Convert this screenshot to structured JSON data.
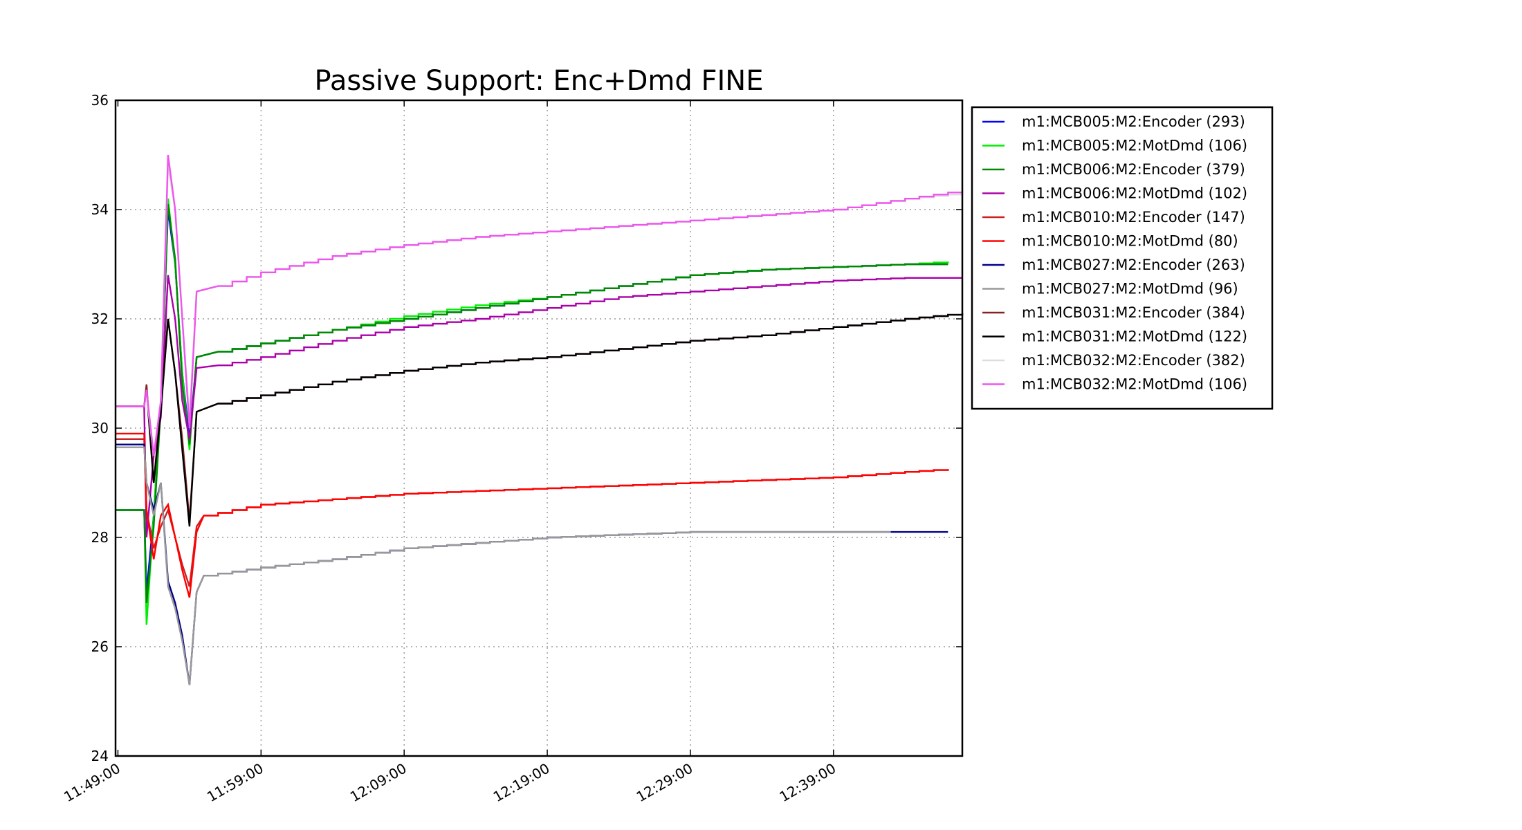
{
  "chart_data": {
    "type": "line",
    "title": "Passive Support:  Enc+Dmd FINE",
    "xlabel": "",
    "ylabel": "",
    "xlim": [
      "11:48:50",
      "12:48:00"
    ],
    "ylim": [
      24,
      36
    ],
    "xticks": [
      "11:49:00",
      "11:59:00",
      "12:09:00",
      "12:19:00",
      "12:29:00",
      "12:39:00"
    ],
    "yticks": [
      24,
      26,
      28,
      30,
      32,
      34,
      36
    ],
    "grid": true,
    "legend_position": "outside-right-top",
    "series": [
      {
        "name": "m1:MCB005:M2:Encoder (293)",
        "color": "#0000ff",
        "points": [
          [
            "11:48:50",
            28.5
          ],
          [
            "11:50:50",
            28.5
          ],
          [
            "11:51:00",
            27.0
          ],
          [
            "11:51:30",
            28.4
          ],
          [
            "11:52:00",
            30.5
          ],
          [
            "11:52:30",
            34.0
          ],
          [
            "11:53:00",
            33.0
          ],
          [
            "11:53:30",
            31.0
          ],
          [
            "11:54:00",
            29.8
          ],
          [
            "11:54:30",
            31.3
          ],
          [
            "11:56:00",
            31.4
          ],
          [
            "11:59:00",
            31.55
          ],
          [
            "12:04:00",
            31.8
          ],
          [
            "12:09:00",
            32.0
          ],
          [
            "12:14:00",
            32.2
          ],
          [
            "12:19:00",
            32.4
          ],
          [
            "12:24:00",
            32.6
          ],
          [
            "12:29:00",
            32.8
          ],
          [
            "12:34:00",
            32.9
          ],
          [
            "12:39:00",
            32.95
          ],
          [
            "12:44:00",
            33.0
          ],
          [
            "12:47:00",
            33.0
          ]
        ]
      },
      {
        "name": "m1:MCB005:M2:MotDmd (106)",
        "color": "#00ee00",
        "points": [
          [
            "11:48:50",
            28.5
          ],
          [
            "11:50:50",
            28.5
          ],
          [
            "11:51:00",
            26.4
          ],
          [
            "11:51:30",
            28.4
          ],
          [
            "11:52:00",
            30.5
          ],
          [
            "11:52:30",
            34.2
          ],
          [
            "11:53:00",
            33.0
          ],
          [
            "11:53:30",
            31.0
          ],
          [
            "11:54:00",
            29.6
          ],
          [
            "11:54:30",
            31.3
          ],
          [
            "11:56:00",
            31.4
          ],
          [
            "11:59:00",
            31.55
          ],
          [
            "12:04:00",
            31.8
          ],
          [
            "12:09:00",
            32.05
          ],
          [
            "12:14:00",
            32.25
          ],
          [
            "12:19:00",
            32.4
          ],
          [
            "12:24:00",
            32.6
          ],
          [
            "12:29:00",
            32.8
          ],
          [
            "12:34:00",
            32.9
          ],
          [
            "12:39:00",
            32.95
          ],
          [
            "12:44:00",
            33.0
          ],
          [
            "12:47:00",
            33.05
          ]
        ]
      },
      {
        "name": "m1:MCB006:M2:Encoder (379)",
        "color": "#008800",
        "points": [
          [
            "11:48:50",
            28.5
          ],
          [
            "11:50:50",
            28.5
          ],
          [
            "11:51:00",
            26.8
          ],
          [
            "11:51:30",
            28.2
          ],
          [
            "11:52:00",
            30.4
          ],
          [
            "11:52:30",
            34.1
          ],
          [
            "11:53:00",
            33.1
          ],
          [
            "11:53:30",
            30.8
          ],
          [
            "11:54:00",
            29.7
          ],
          [
            "11:54:30",
            31.3
          ],
          [
            "11:56:00",
            31.4
          ],
          [
            "11:59:00",
            31.55
          ],
          [
            "12:04:00",
            31.8
          ],
          [
            "12:09:00",
            32.0
          ],
          [
            "12:14:00",
            32.2
          ],
          [
            "12:19:00",
            32.4
          ],
          [
            "12:24:00",
            32.6
          ],
          [
            "12:29:00",
            32.8
          ],
          [
            "12:34:00",
            32.9
          ],
          [
            "12:39:00",
            32.95
          ],
          [
            "12:44:00",
            33.0
          ],
          [
            "12:47:00",
            33.0
          ]
        ]
      },
      {
        "name": "m1:MCB006:M2:MotDmd (102)",
        "color": "#aa00aa",
        "points": [
          [
            "11:48:50",
            30.4
          ],
          [
            "11:50:50",
            30.4
          ],
          [
            "11:51:00",
            28.0
          ],
          [
            "11:51:30",
            29.5
          ],
          [
            "11:52:00",
            30.2
          ],
          [
            "11:52:30",
            32.8
          ],
          [
            "11:53:00",
            32.0
          ],
          [
            "11:53:30",
            30.5
          ],
          [
            "11:54:00",
            29.8
          ],
          [
            "11:54:30",
            31.1
          ],
          [
            "11:56:00",
            31.15
          ],
          [
            "11:59:00",
            31.3
          ],
          [
            "12:04:00",
            31.6
          ],
          [
            "12:09:00",
            31.85
          ],
          [
            "12:14:00",
            32.0
          ],
          [
            "12:19:00",
            32.2
          ],
          [
            "12:24:00",
            32.4
          ],
          [
            "12:29:00",
            32.5
          ],
          [
            "12:34:00",
            32.6
          ],
          [
            "12:39:00",
            32.7
          ],
          [
            "12:44:00",
            32.75
          ],
          [
            "12:48:00",
            32.75
          ]
        ]
      },
      {
        "name": "m1:MCB010:M2:Encoder (147)",
        "color": "#cc2222",
        "points": [
          [
            "11:48:50",
            29.8
          ],
          [
            "11:50:50",
            29.8
          ],
          [
            "11:51:00",
            28.5
          ],
          [
            "11:51:30",
            27.8
          ],
          [
            "11:52:00",
            28.2
          ],
          [
            "11:52:30",
            28.5
          ],
          [
            "11:53:00",
            28.0
          ],
          [
            "11:53:30",
            27.5
          ],
          [
            "11:54:00",
            27.1
          ],
          [
            "11:54:30",
            28.2
          ],
          [
            "11:55:00",
            28.4
          ],
          [
            "11:59:00",
            28.6
          ],
          [
            "12:04:00",
            28.7
          ],
          [
            "12:09:00",
            28.8
          ],
          [
            "12:14:00",
            28.85
          ],
          [
            "12:19:00",
            28.9
          ],
          [
            "12:24:00",
            28.95
          ],
          [
            "12:29:00",
            29.0
          ],
          [
            "12:34:00",
            29.05
          ],
          [
            "12:39:00",
            29.1
          ],
          [
            "12:44:00",
            29.2
          ],
          [
            "12:47:00",
            29.25
          ]
        ]
      },
      {
        "name": "m1:MCB010:M2:MotDmd (80)",
        "color": "#ff0000",
        "points": [
          [
            "11:48:50",
            29.9
          ],
          [
            "11:50:50",
            29.9
          ],
          [
            "11:51:00",
            28.5
          ],
          [
            "11:51:30",
            27.6
          ],
          [
            "11:52:00",
            28.4
          ],
          [
            "11:52:30",
            28.6
          ],
          [
            "11:53:00",
            28.0
          ],
          [
            "11:53:30",
            27.4
          ],
          [
            "11:54:00",
            26.9
          ],
          [
            "11:54:30",
            28.1
          ],
          [
            "11:55:00",
            28.4
          ],
          [
            "11:59:00",
            28.6
          ],
          [
            "12:04:00",
            28.7
          ],
          [
            "12:09:00",
            28.8
          ],
          [
            "12:14:00",
            28.85
          ],
          [
            "12:19:00",
            28.9
          ],
          [
            "12:24:00",
            28.95
          ],
          [
            "12:29:00",
            29.0
          ],
          [
            "12:34:00",
            29.05
          ],
          [
            "12:39:00",
            29.1
          ],
          [
            "12:44:00",
            29.2
          ],
          [
            "12:47:00",
            29.25
          ]
        ]
      },
      {
        "name": "m1:MCB027:M2:Encoder (263)",
        "color": "#000088",
        "points": [
          [
            "11:48:50",
            29.7
          ],
          [
            "11:50:50",
            29.7
          ],
          [
            "11:51:00",
            29.0
          ],
          [
            "11:51:30",
            28.5
          ],
          [
            "11:52:00",
            29.0
          ],
          [
            "11:52:30",
            27.2
          ],
          [
            "11:53:00",
            26.8
          ],
          [
            "11:53:30",
            26.2
          ],
          [
            "11:54:00",
            25.3
          ],
          [
            "11:54:30",
            27.0
          ],
          [
            "11:55:00",
            27.3
          ],
          [
            "11:59:00",
            27.45
          ],
          [
            "12:04:00",
            27.6
          ],
          [
            "12:09:00",
            27.8
          ],
          [
            "12:14:00",
            27.9
          ],
          [
            "12:19:00",
            28.0
          ],
          [
            "12:24:00",
            28.05
          ],
          [
            "12:29:00",
            28.1
          ],
          [
            "12:34:00",
            28.1
          ],
          [
            "12:39:00",
            28.1
          ],
          [
            "12:44:00",
            28.1
          ],
          [
            "12:47:00",
            28.1
          ]
        ]
      },
      {
        "name": "m1:MCB027:M2:MotDmd (96)",
        "color": "#999999",
        "points": [
          [
            "11:48:50",
            29.65
          ],
          [
            "11:50:50",
            29.65
          ],
          [
            "11:51:00",
            29.0
          ],
          [
            "11:51:30",
            28.4
          ],
          [
            "11:52:00",
            29.0
          ],
          [
            "11:52:30",
            27.1
          ],
          [
            "11:53:00",
            26.7
          ],
          [
            "11:53:30",
            26.1
          ],
          [
            "11:54:00",
            25.3
          ],
          [
            "11:54:30",
            27.0
          ],
          [
            "11:55:00",
            27.3
          ],
          [
            "11:59:00",
            27.45
          ],
          [
            "12:04:00",
            27.6
          ],
          [
            "12:09:00",
            27.8
          ],
          [
            "12:14:00",
            27.9
          ],
          [
            "12:19:00",
            28.0
          ],
          [
            "12:24:00",
            28.05
          ],
          [
            "12:29:00",
            28.1
          ],
          [
            "12:34:00",
            28.1
          ],
          [
            "12:39:00",
            28.1
          ],
          [
            "12:43:00",
            28.1
          ]
        ]
      },
      {
        "name": "m1:MCB031:M2:Encoder (384)",
        "color": "#882222",
        "points": [
          [
            "11:48:50",
            30.4
          ],
          [
            "11:50:50",
            30.4
          ],
          [
            "11:51:00",
            30.8
          ],
          [
            "11:51:30",
            29.0
          ],
          [
            "11:52:00",
            30.4
          ],
          [
            "11:52:30",
            32.0
          ],
          [
            "11:53:00",
            31.0
          ],
          [
            "11:53:30",
            29.8
          ],
          [
            "11:54:00",
            28.3
          ],
          [
            "11:54:30",
            30.3
          ],
          [
            "11:56:00",
            30.45
          ],
          [
            "11:59:00",
            30.6
          ],
          [
            "12:04:00",
            30.85
          ],
          [
            "12:09:00",
            31.05
          ],
          [
            "12:14:00",
            31.2
          ],
          [
            "12:19:00",
            31.3
          ],
          [
            "12:24:00",
            31.45
          ],
          [
            "12:29:00",
            31.6
          ],
          [
            "12:34:00",
            31.7
          ],
          [
            "12:39:00",
            31.85
          ],
          [
            "12:44:00",
            32.0
          ],
          [
            "12:48:00",
            32.1
          ]
        ]
      },
      {
        "name": "m1:MCB031:M2:MotDmd (122)",
        "color": "#000000",
        "points": [
          [
            "11:48:50",
            30.4
          ],
          [
            "11:50:50",
            30.4
          ],
          [
            "11:51:00",
            30.7
          ],
          [
            "11:51:30",
            29.0
          ],
          [
            "11:52:00",
            30.3
          ],
          [
            "11:52:30",
            32.0
          ],
          [
            "11:53:00",
            31.0
          ],
          [
            "11:53:30",
            29.6
          ],
          [
            "11:54:00",
            28.2
          ],
          [
            "11:54:30",
            30.3
          ],
          [
            "11:56:00",
            30.45
          ],
          [
            "11:59:00",
            30.6
          ],
          [
            "12:04:00",
            30.85
          ],
          [
            "12:09:00",
            31.05
          ],
          [
            "12:14:00",
            31.2
          ],
          [
            "12:19:00",
            31.3
          ],
          [
            "12:24:00",
            31.45
          ],
          [
            "12:29:00",
            31.6
          ],
          [
            "12:34:00",
            31.7
          ],
          [
            "12:39:00",
            31.85
          ],
          [
            "12:44:00",
            32.0
          ],
          [
            "12:48:00",
            32.1
          ]
        ]
      },
      {
        "name": "m1:MCB032:M2:Encoder (382)",
        "color": "#dddddd",
        "points": [
          [
            "11:48:50",
            30.4
          ],
          [
            "11:50:50",
            30.4
          ],
          [
            "11:51:00",
            30.6
          ],
          [
            "11:51:30",
            29.5
          ],
          [
            "11:52:00",
            30.5
          ],
          [
            "11:52:30",
            34.8
          ],
          [
            "11:53:00",
            34.0
          ],
          [
            "11:53:30",
            32.0
          ],
          [
            "11:54:00",
            30.2
          ],
          [
            "11:54:30",
            32.5
          ],
          [
            "11:56:00",
            32.6
          ],
          [
            "11:59:00",
            32.85
          ],
          [
            "12:04:00",
            33.15
          ],
          [
            "12:09:00",
            33.35
          ],
          [
            "12:14:00",
            33.5
          ],
          [
            "12:19:00",
            33.6
          ],
          [
            "12:24:00",
            33.7
          ],
          [
            "12:29:00",
            33.8
          ],
          [
            "12:34:00",
            33.9
          ],
          [
            "12:39:00",
            34.0
          ],
          [
            "12:44:00",
            34.2
          ],
          [
            "12:48:00",
            34.3
          ]
        ]
      },
      {
        "name": "m1:MCB032:M2:MotDmd (106)",
        "color": "#ee55ee",
        "points": [
          [
            "11:48:50",
            30.4
          ],
          [
            "11:50:50",
            30.4
          ],
          [
            "11:51:00",
            30.7
          ],
          [
            "11:51:30",
            29.5
          ],
          [
            "11:52:00",
            30.5
          ],
          [
            "11:52:30",
            35.0
          ],
          [
            "11:53:00",
            34.0
          ],
          [
            "11:53:30",
            32.0
          ],
          [
            "11:54:00",
            30.0
          ],
          [
            "11:54:30",
            32.5
          ],
          [
            "11:56:00",
            32.6
          ],
          [
            "11:59:00",
            32.85
          ],
          [
            "12:04:00",
            33.15
          ],
          [
            "12:09:00",
            33.35
          ],
          [
            "12:14:00",
            33.5
          ],
          [
            "12:19:00",
            33.6
          ],
          [
            "12:24:00",
            33.7
          ],
          [
            "12:29:00",
            33.8
          ],
          [
            "12:34:00",
            33.9
          ],
          [
            "12:39:00",
            34.0
          ],
          [
            "12:44:00",
            34.2
          ],
          [
            "12:48:00",
            34.35
          ]
        ]
      }
    ]
  }
}
